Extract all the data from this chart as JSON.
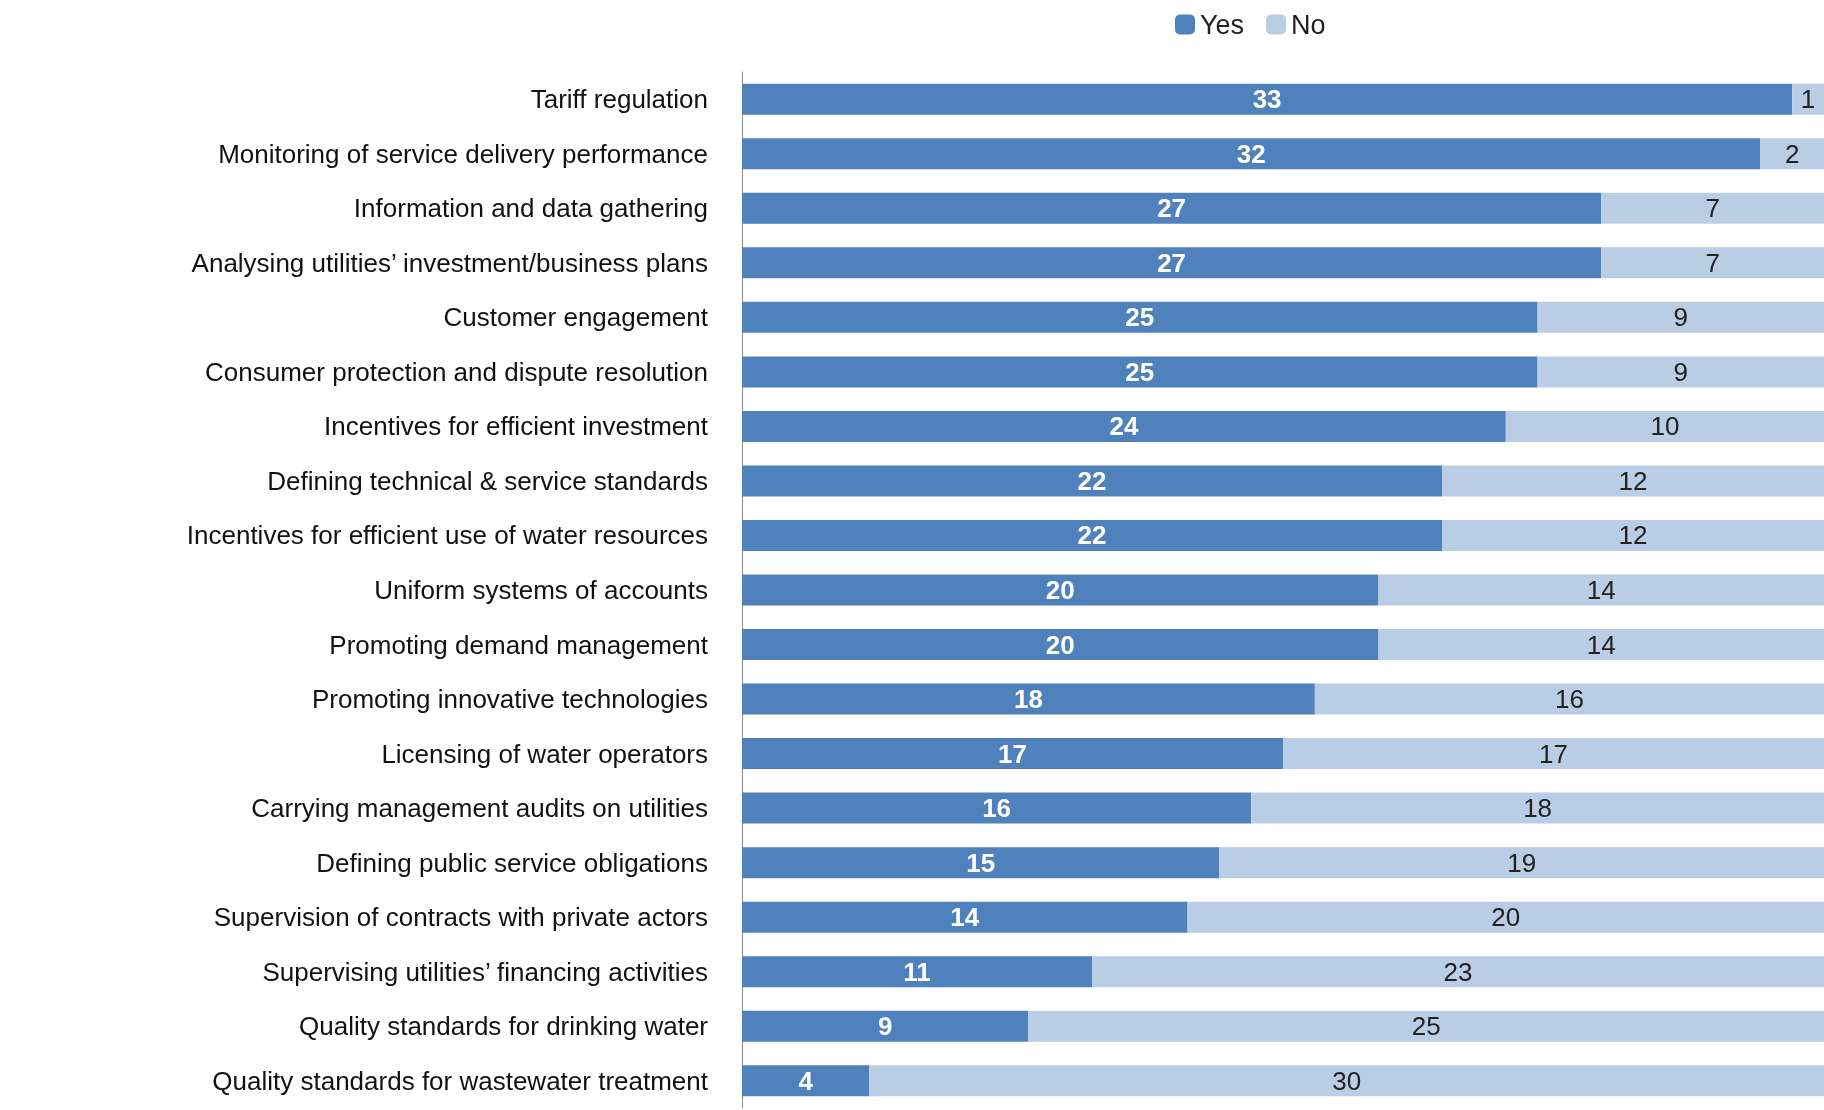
{
  "chart_data": {
    "type": "bar",
    "orientation": "horizontal",
    "stacked": true,
    "data_labels": true,
    "legend": "top",
    "grid": false,
    "categories": [
      "Tariff regulation",
      "Monitoring of service delivery performance",
      "Information and data gathering",
      "Analysing utilities’ investment/business plans",
      "Customer engagement",
      "Consumer protection and dispute resolution",
      "Incentives for efficient investment",
      "Defining technical & service standards",
      "Incentives for efficient use of water resources",
      "Uniform systems of accounts",
      "Promoting demand management",
      "Promoting innovative technologies",
      "Licensing of water operators",
      "Carrying management audits on utilities",
      "Defining public service obligations",
      "Supervision of contracts with private actors",
      "Supervising utilities’ financing activities",
      "Quality standards for drinking water",
      "Quality standards for wastewater treatment"
    ],
    "series": [
      {
        "name": "Yes",
        "color": "#4f81bd",
        "values": [
          33,
          32,
          27,
          27,
          25,
          25,
          24,
          22,
          22,
          20,
          20,
          18,
          17,
          16,
          15,
          14,
          11,
          9,
          4
        ]
      },
      {
        "name": "No",
        "color": "#b9cde5",
        "values": [
          1,
          2,
          7,
          7,
          9,
          9,
          10,
          12,
          12,
          14,
          14,
          16,
          17,
          18,
          19,
          20,
          23,
          25,
          30
        ]
      }
    ]
  }
}
